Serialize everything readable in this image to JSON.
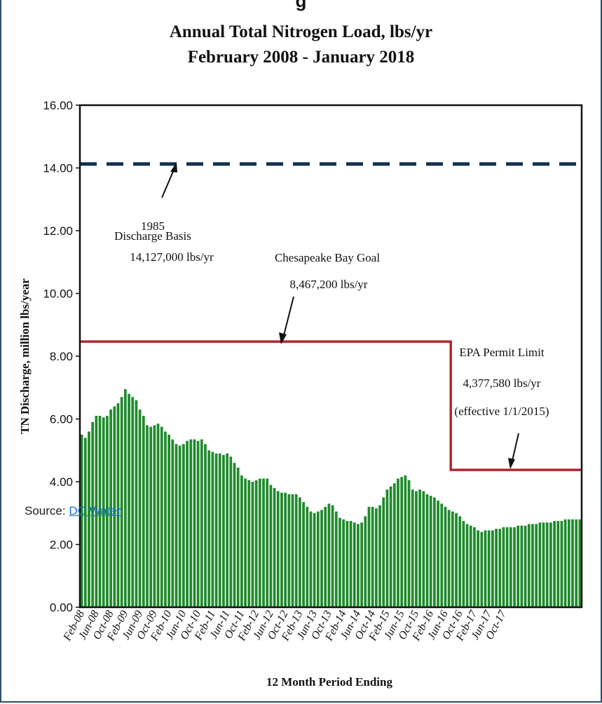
{
  "header_fragment": "g",
  "source": {
    "label": "Source:",
    "link_text": "DC Water"
  },
  "colors": {
    "bars": "#1f8a2c",
    "bay_goal_line": "#b3262e",
    "basis_line": "#14304f",
    "frame": "#2f4f6e",
    "link": "#1a6fc9"
  },
  "chart_data": {
    "type": "bar",
    "title": "Annual Total Nitrogen Load, lbs/yr",
    "subtitle": "February 2008 - January 2018",
    "xlabel": "12 Month Period Ending",
    "ylabel": "TN Discharge, million lbs/year",
    "ylim": [
      0,
      16
    ],
    "yticks": [
      "0.00",
      "2.00",
      "4.00",
      "6.00",
      "8.00",
      "10.00",
      "12.00",
      "14.00",
      "16.00"
    ],
    "xticks": [
      "Feb-08",
      "Jun-08",
      "Oct-08",
      "Feb-09",
      "Jun-09",
      "Oct-09",
      "Feb-10",
      "Jun-10",
      "Oct-10",
      "Feb-11",
      "Jun-11",
      "Oct-11",
      "Feb-12",
      "Jun-12",
      "Oct-12",
      "Feb-13",
      "Jun-13",
      "Oct-13",
      "Feb-14",
      "Jun-14",
      "Oct-14",
      "Feb-15",
      "Jun-15",
      "Oct-15",
      "Feb-16",
      "Jun-16",
      "Oct-16",
      "Feb-17",
      "Jun-17",
      "Oct-17"
    ],
    "grid": false,
    "values": [
      5.5,
      5.4,
      5.6,
      5.9,
      6.1,
      6.1,
      6.05,
      6.1,
      6.3,
      6.4,
      6.5,
      6.7,
      6.95,
      6.8,
      6.7,
      6.6,
      6.3,
      6.1,
      5.8,
      5.75,
      5.8,
      5.85,
      5.75,
      5.6,
      5.5,
      5.35,
      5.2,
      5.15,
      5.2,
      5.3,
      5.35,
      5.35,
      5.3,
      5.35,
      5.2,
      5.0,
      4.95,
      4.9,
      4.9,
      4.85,
      4.9,
      4.8,
      4.6,
      4.45,
      4.2,
      4.1,
      4.05,
      4.0,
      4.05,
      4.1,
      4.1,
      4.1,
      3.9,
      3.8,
      3.7,
      3.65,
      3.65,
      3.6,
      3.6,
      3.6,
      3.5,
      3.35,
      3.2,
      3.05,
      3.0,
      3.05,
      3.1,
      3.2,
      3.3,
      3.25,
      3.05,
      2.85,
      2.8,
      2.75,
      2.75,
      2.7,
      2.65,
      2.7,
      2.9,
      3.2,
      3.2,
      3.15,
      3.25,
      3.5,
      3.75,
      3.85,
      3.95,
      4.1,
      4.15,
      4.2,
      4.05,
      3.75,
      3.7,
      3.75,
      3.7,
      3.6,
      3.55,
      3.5,
      3.4,
      3.3,
      3.2,
      3.1,
      3.05,
      3.0,
      2.9,
      2.75,
      2.65,
      2.6,
      2.55,
      2.45,
      2.4,
      2.45,
      2.45,
      2.45,
      2.5,
      2.5,
      2.55,
      2.55,
      2.55,
      2.55,
      2.6,
      2.6,
      2.6,
      2.65,
      2.65,
      2.65,
      2.7,
      2.7,
      2.7,
      2.7,
      2.75,
      2.75,
      2.75,
      2.8,
      2.8,
      2.8,
      2.8,
      2.8
    ],
    "reference_lines": [
      {
        "name": "Discharge Basis",
        "value": 14.127,
        "style": "dashed",
        "labels": [
          "1985",
          "Discharge Basis",
          "14,127,000 lbs/yr"
        ]
      },
      {
        "name": "Chesapeake Bay Goal",
        "value": 8.4672,
        "until": "Jan-15",
        "style": "solid",
        "labels": [
          "Chesapeake Bay Goal",
          "8,467,200  lbs/yr"
        ]
      },
      {
        "name": "EPA Permit Limit",
        "value": 4.37758,
        "from": "Jan-15",
        "style": "solid",
        "labels": [
          "EPA Permit Limit",
          "4,377,580 lbs/yr",
          "(effective 1/1/2015)"
        ]
      }
    ]
  }
}
